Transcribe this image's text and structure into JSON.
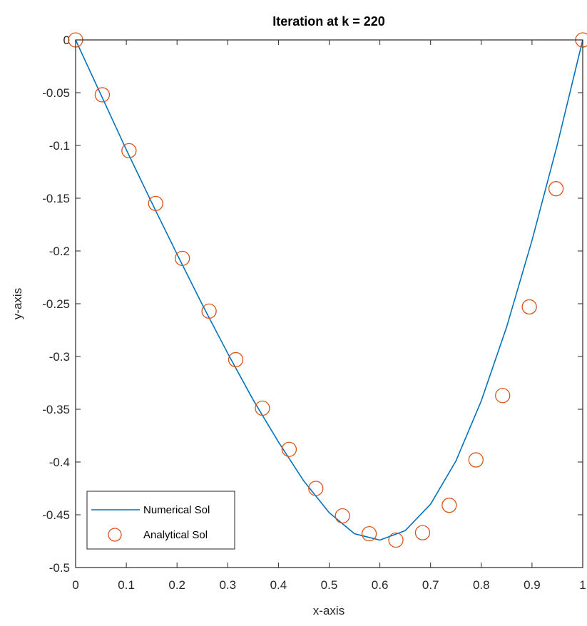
{
  "chart_data": {
    "type": "line",
    "title": "Iteration at k = 220",
    "xlabel": "x-axis",
    "ylabel": "y-axis",
    "xlim": [
      0,
      1
    ],
    "ylim": [
      -0.5,
      0
    ],
    "xticks": [
      0,
      0.1,
      0.2,
      0.3,
      0.4,
      0.5,
      0.6,
      0.7,
      0.8,
      0.9,
      1
    ],
    "xtick_labels": [
      "0",
      "0.1",
      "0.2",
      "0.3",
      "0.4",
      "0.5",
      "0.6",
      "0.7",
      "0.8",
      "0.9",
      "1"
    ],
    "yticks": [
      0,
      -0.05,
      -0.1,
      -0.15,
      -0.2,
      -0.25,
      -0.3,
      -0.35,
      -0.4,
      -0.45,
      -0.5
    ],
    "ytick_labels": [
      "0",
      "-0.05",
      "-0.1",
      "-0.15",
      "-0.2",
      "-0.25",
      "-0.3",
      "-0.35",
      "-0.4",
      "-0.45",
      "-0.5"
    ],
    "grid": false,
    "legend_position": "bottom-left",
    "series": [
      {
        "name": "Numerical Sol",
        "style": "line",
        "color": "#0072BD",
        "x": [
          0,
          0.05,
          0.1,
          0.15,
          0.2,
          0.25,
          0.3,
          0.35,
          0.4,
          0.45,
          0.5,
          0.55,
          0.6,
          0.65,
          0.7,
          0.75,
          0.8,
          0.85,
          0.9,
          0.95,
          1
        ],
        "y": [
          0,
          -0.052,
          -0.104,
          -0.154,
          -0.203,
          -0.251,
          -0.297,
          -0.341,
          -0.381,
          -0.418,
          -0.448,
          -0.468,
          -0.474,
          -0.465,
          -0.44,
          -0.399,
          -0.342,
          -0.272,
          -0.19,
          -0.099,
          0
        ]
      },
      {
        "name": "Analytical Sol",
        "style": "markers",
        "marker": "circle",
        "color": "#D95319",
        "x": [
          0,
          0.0526,
          0.1053,
          0.1579,
          0.2105,
          0.2632,
          0.3158,
          0.3684,
          0.4211,
          0.4737,
          0.5263,
          0.5789,
          0.6316,
          0.6842,
          0.7368,
          0.7895,
          0.8421,
          0.8947,
          0.9474,
          1
        ],
        "y": [
          0,
          -0.052,
          -0.105,
          -0.155,
          -0.207,
          -0.257,
          -0.303,
          -0.349,
          -0.388,
          -0.425,
          -0.451,
          -0.468,
          -0.474,
          -0.467,
          -0.441,
          -0.398,
          -0.337,
          -0.253,
          -0.141,
          0
        ]
      }
    ]
  }
}
